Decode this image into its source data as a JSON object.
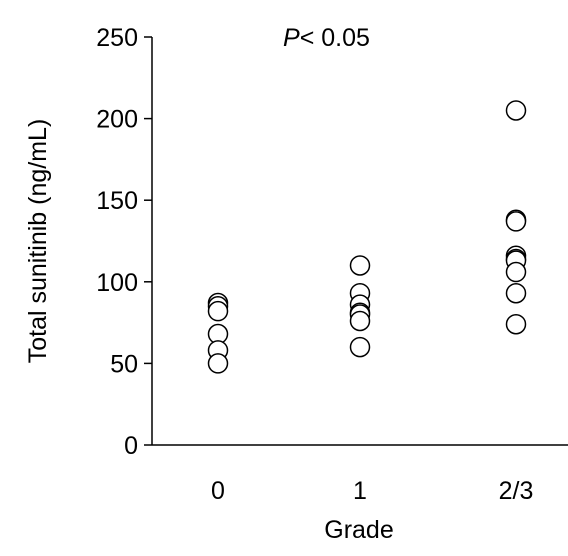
{
  "chart_data": {
    "type": "scatter",
    "title": "",
    "xlabel": "Grade",
    "ylabel": "Total sunitinib (ng/mL)",
    "categories": [
      "0",
      "1",
      "2/3"
    ],
    "ylim": [
      0,
      250
    ],
    "yticks": [
      "0",
      "50",
      "100",
      "150",
      "200",
      "250"
    ],
    "grid": false,
    "annotation": {
      "italic": "P",
      "rest": "< 0.05"
    },
    "series": [
      {
        "category": "0",
        "values": [
          87,
          85,
          82,
          68,
          58,
          50
        ]
      },
      {
        "category": "1",
        "values": [
          110,
          93,
          86,
          81,
          80,
          76,
          60
        ]
      },
      {
        "category": "2/3",
        "values": [
          205,
          138,
          137,
          116,
          114,
          113,
          106,
          93,
          74
        ]
      }
    ],
    "colors": {
      "axis": "#000000",
      "marker_fill": "#ffffff",
      "marker_stroke": "#000000"
    }
  }
}
